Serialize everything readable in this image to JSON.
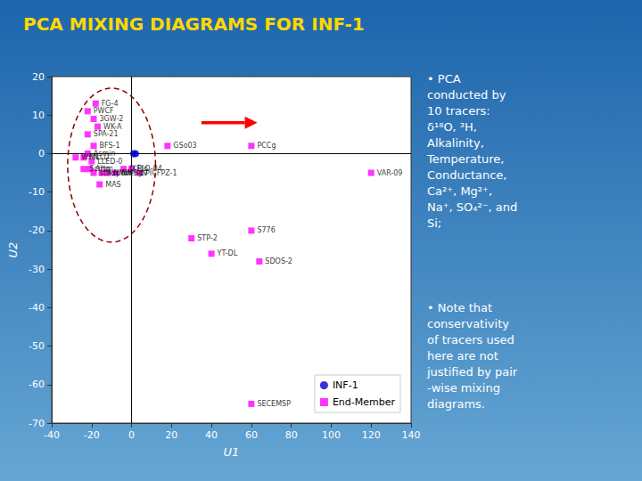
{
  "chart_data": {
    "type": "scatter",
    "title": "PCA MIXING DIAGRAMS FOR INF-1",
    "title_color": "#FFD700",
    "xlabel": "U1",
    "ylabel": "U2",
    "xlim": [
      -40,
      140
    ],
    "ylim": [
      -70,
      20
    ],
    "xticks": [
      -40,
      -20,
      0,
      20,
      40,
      60,
      80,
      100,
      120,
      140
    ],
    "yticks": [
      -70,
      -60,
      -50,
      -40,
      -30,
      -20,
      -10,
      0,
      10,
      20
    ],
    "grid": false,
    "legend": "lower right",
    "series": [
      {
        "name": "INF-1",
        "color": "#0000CD",
        "marker": "circle",
        "x": [
          1,
          2
        ],
        "values": [
          0,
          0
        ]
      },
      {
        "name": "End-Member",
        "color": "#FF00FF",
        "marker": "square",
        "x": [
          -18,
          -22,
          -19,
          -17,
          -22,
          -19,
          -22,
          -28,
          -24,
          -20,
          -24,
          -21,
          -19,
          -15,
          -12,
          -8,
          -4,
          0,
          4,
          -16,
          18,
          60,
          120,
          30,
          60,
          40,
          64,
          60
        ],
        "values": [
          13,
          11,
          9,
          7,
          5,
          2,
          0,
          -1,
          -1,
          -2,
          -4,
          -4,
          -5,
          -5,
          -5,
          -5,
          -4,
          -4,
          -5,
          -8,
          2,
          2,
          -5,
          -22,
          -20,
          -26,
          -28,
          -65
        ],
        "labels": [
          "FG-4",
          "PWCF",
          "3GW-2",
          "WK-A",
          "SPA-21",
          "BFS-1",
          "Asmin",
          "WRN",
          "MLLD",
          "LLED-0",
          "Scrho",
          "Artm",
          "stho",
          "Aspum",
          "NMW-hpv",
          "NMS-b",
          "IXELO-04",
          "Plo",
          "PICFPZ-1",
          "MAS",
          "GSo03",
          "PCCg",
          "VAR-09",
          "STP-2",
          "S776",
          "YT-DL",
          "SDOS-2",
          "SECEMSP"
        ]
      }
    ],
    "reference_lines": {
      "x": [
        0
      ],
      "y": [
        0
      ],
      "color": "#000000"
    },
    "ellipse": {
      "center_x": -10,
      "center_y": -3,
      "radius_x": 22,
      "radius_y": 20,
      "color": "#8B0000",
      "line_style": "dashed"
    },
    "arrow": {
      "x_start": 35,
      "x_end": 63,
      "y": 8,
      "color": "red"
    },
    "notes": [
      "• PCA\nconducted by\n10 tracers:\nδ¹⁸O, ³H,\nAlkalinity,\nTemperature,\nConductance,\nCa²⁺, Mg²⁺,\nNa⁺, SO₄²⁻, and\nSi;",
      "• Note that\nconservativity\nof tracers used\nhere are not\njustified by pair\n-wise mixing\ndiagrams."
    ],
    "text_color": "#ffffff"
  }
}
